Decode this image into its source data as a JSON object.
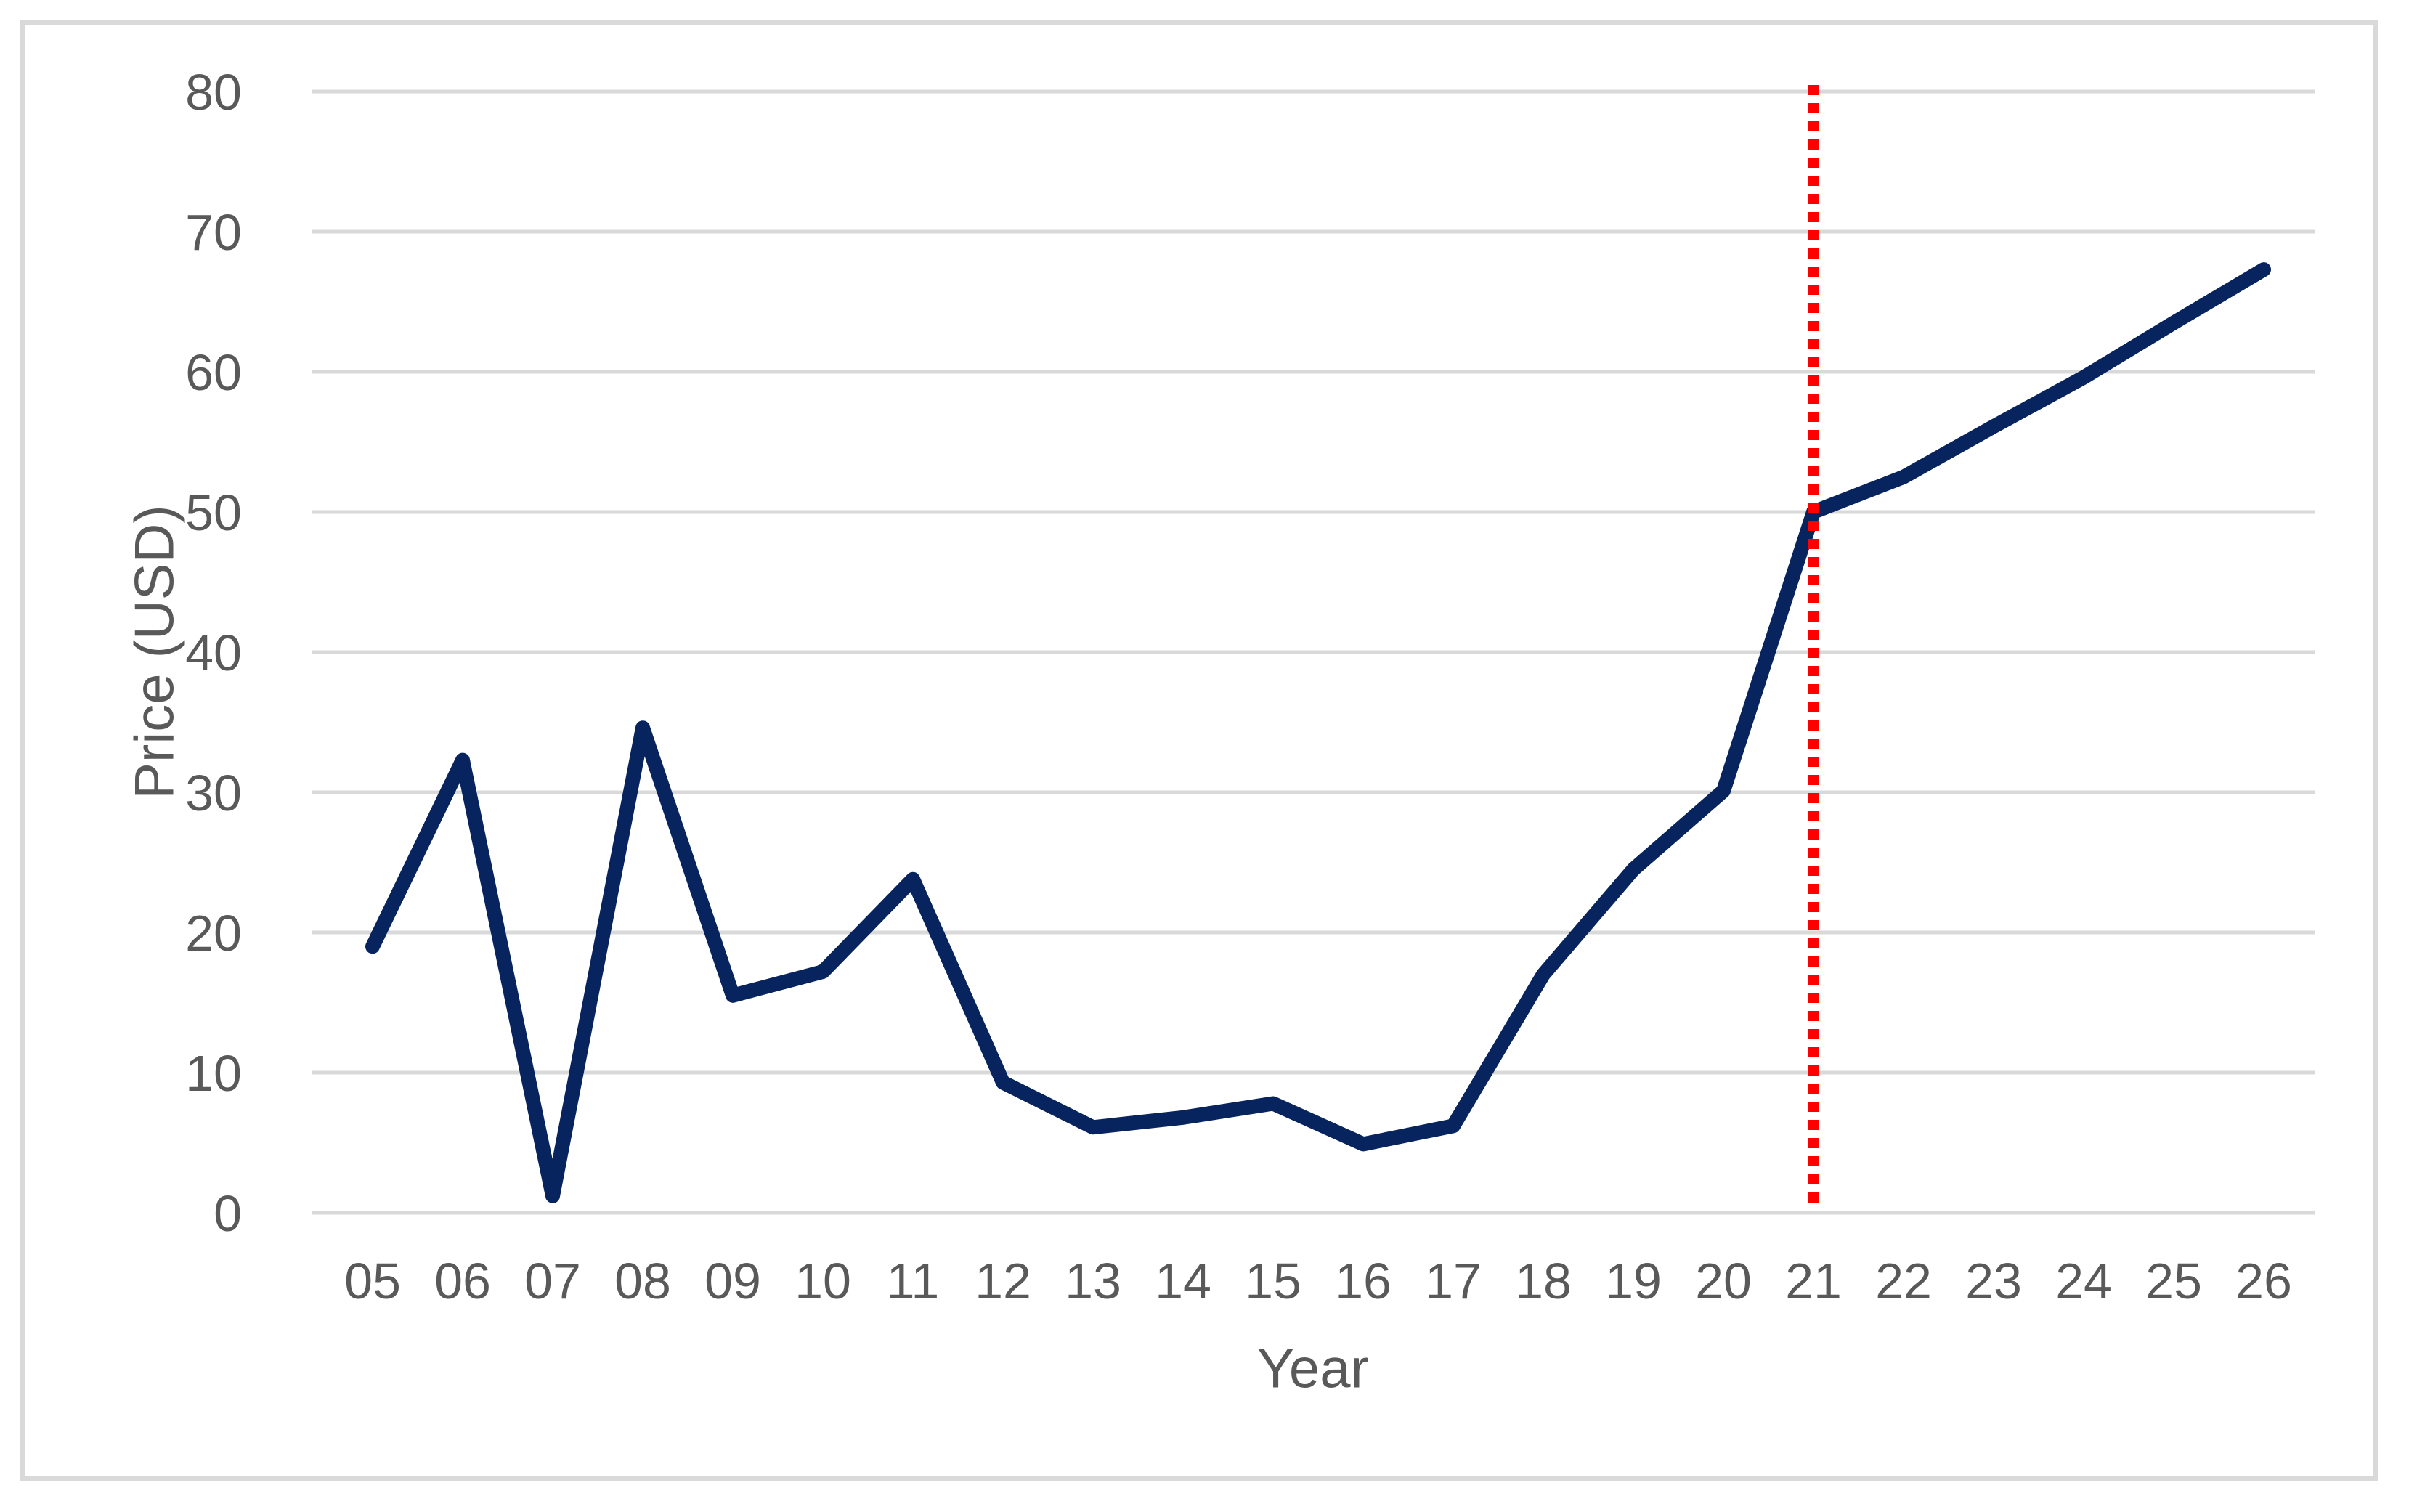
{
  "chart_data": {
    "type": "line",
    "title": "",
    "xlabel": "Year",
    "ylabel": "Price (USD)",
    "categories": [
      "05",
      "06",
      "07",
      "08",
      "09",
      "10",
      "11",
      "12",
      "13",
      "14",
      "15",
      "16",
      "17",
      "18",
      "19",
      "20",
      "21",
      "22",
      "23",
      "24",
      "25",
      "26"
    ],
    "series": [
      {
        "name": "price",
        "color": "#08245E",
        "values": [
          19,
          32.3,
          1.2,
          34.6,
          15.5,
          17.2,
          23.8,
          9.3,
          6.1,
          6.8,
          7.8,
          4.9,
          6.2,
          17,
          24.5,
          30.1,
          50,
          52.5,
          56.1,
          59.6,
          63.5,
          67.3
        ]
      }
    ],
    "ylim": [
      0,
      80
    ],
    "y_tick_step": 10,
    "y_tick_labels": [
      "0",
      "10",
      "20",
      "30",
      "40",
      "50",
      "60",
      "70",
      "80"
    ],
    "grid": "horizontal-only",
    "legend": "none",
    "annotations": [
      {
        "type": "vertical-dotted-line",
        "at_category": "21",
        "color": "#FF0000"
      }
    ]
  },
  "colors": {
    "line": "#08245E",
    "annotation_line": "#FF0000",
    "gridline": "#D9D9D9",
    "frame_border": "#D9D9D9",
    "axis_text": "#595959",
    "background": "#FFFFFF"
  }
}
